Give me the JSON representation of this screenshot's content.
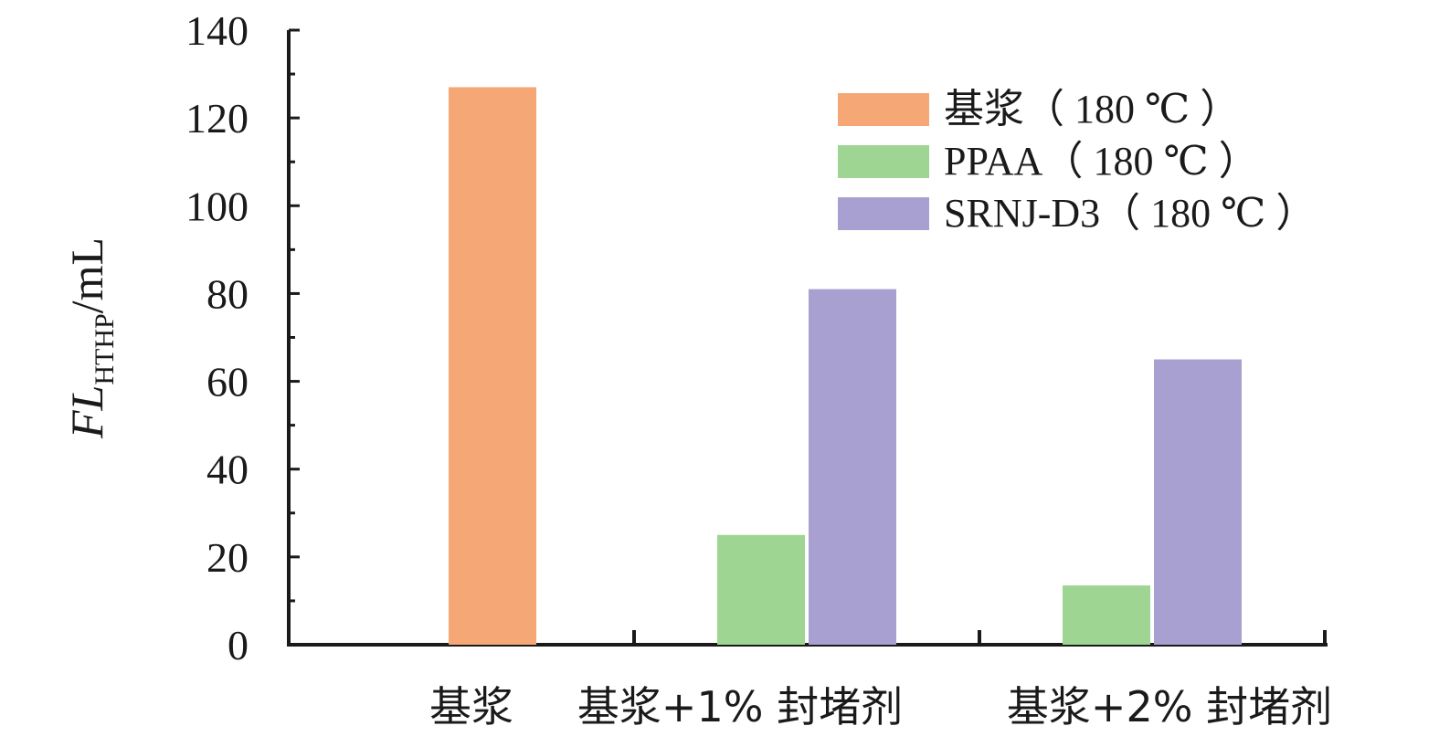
{
  "chart_data": {
    "type": "bar",
    "categories": [
      "基浆",
      "基浆+1% 封堵剂",
      "基浆+2% 封堵剂"
    ],
    "series": [
      {
        "name": "基浆（ 180 ℃ ）",
        "color": "#F5A875",
        "values": [
          127,
          null,
          null
        ]
      },
      {
        "name": "PPAA（ 180 ℃ ）",
        "color": "#9ED593",
        "values": [
          null,
          25,
          13.5
        ]
      },
      {
        "name": "SRNJ-D3（ 180 ℃ ）",
        "color": "#A8A0D0",
        "values": [
          null,
          81,
          65
        ]
      }
    ],
    "ylabel": {
      "main": "FL",
      "sub": "HTHP",
      "unit": "/mL"
    },
    "ylim": [
      0,
      140
    ],
    "yticks": [
      0,
      20,
      40,
      60,
      80,
      100,
      120,
      140
    ],
    "legend_position": "top-right",
    "grid": false
  }
}
